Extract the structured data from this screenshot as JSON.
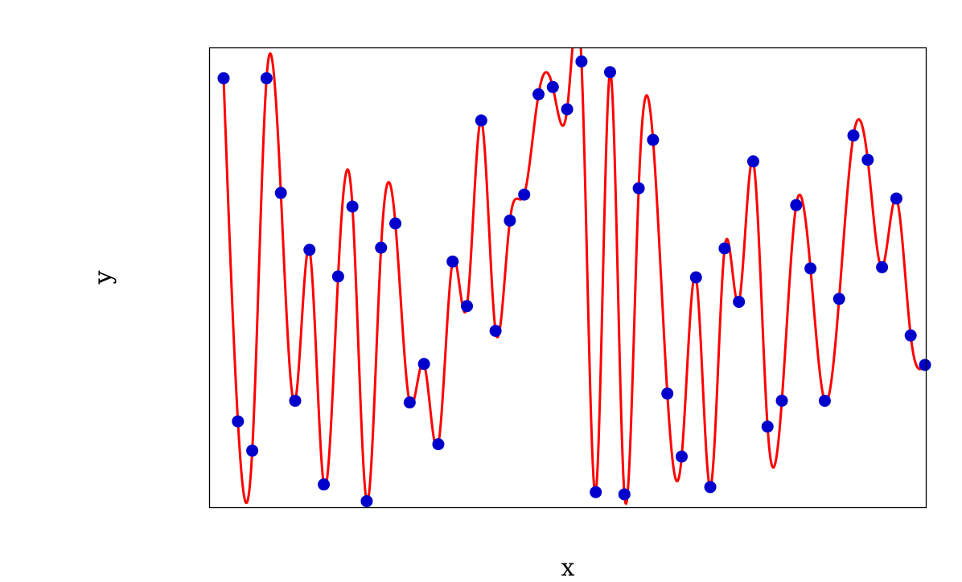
{
  "chart_data": {
    "type": "scatter",
    "xlabel": "x",
    "ylabel": "y",
    "xlim": [
      0,
      50
    ],
    "ylim": [
      -0.03,
      1.02
    ],
    "grid": false,
    "axis_ticks": false,
    "colors": {
      "points": "#0000cc",
      "curve": "#ff0000",
      "frame": "#000000"
    },
    "series": [
      {
        "style": "points+spline",
        "x": [
          1,
          2,
          3,
          4,
          5,
          6,
          7,
          8,
          9,
          10,
          11,
          12,
          13,
          14,
          15,
          16,
          17,
          18,
          19,
          20,
          21,
          22,
          23,
          24,
          25,
          26,
          27,
          28,
          29,
          30,
          31,
          32,
          33,
          34,
          35,
          36,
          37,
          38,
          39,
          40,
          41,
          42,
          43,
          44,
          45,
          46,
          47,
          48,
          49,
          50
        ],
        "y": [
          0.9505,
          0.1669,
          0.1002,
          0.9505,
          0.6886,
          0.214,
          0.5587,
          0.0229,
          0.4979,
          0.6575,
          -0.0152,
          0.5636,
          0.6189,
          0.2102,
          0.2981,
          0.1148,
          0.532,
          0.4302,
          0.8541,
          0.3737,
          0.6255,
          0.6848,
          0.9139,
          0.9304,
          0.8797,
          0.9888,
          0.0054,
          0.9644,
          0.0004,
          0.6993,
          0.8097,
          0.2305,
          0.0866,
          0.4958,
          0.017,
          0.562,
          0.44,
          0.7606,
          0.155,
          0.2142,
          0.6608,
          0.5163,
          0.214,
          0.4467,
          0.8199,
          0.7642,
          0.519,
          0.6759,
          0.3632,
          0.2959
        ]
      }
    ]
  }
}
